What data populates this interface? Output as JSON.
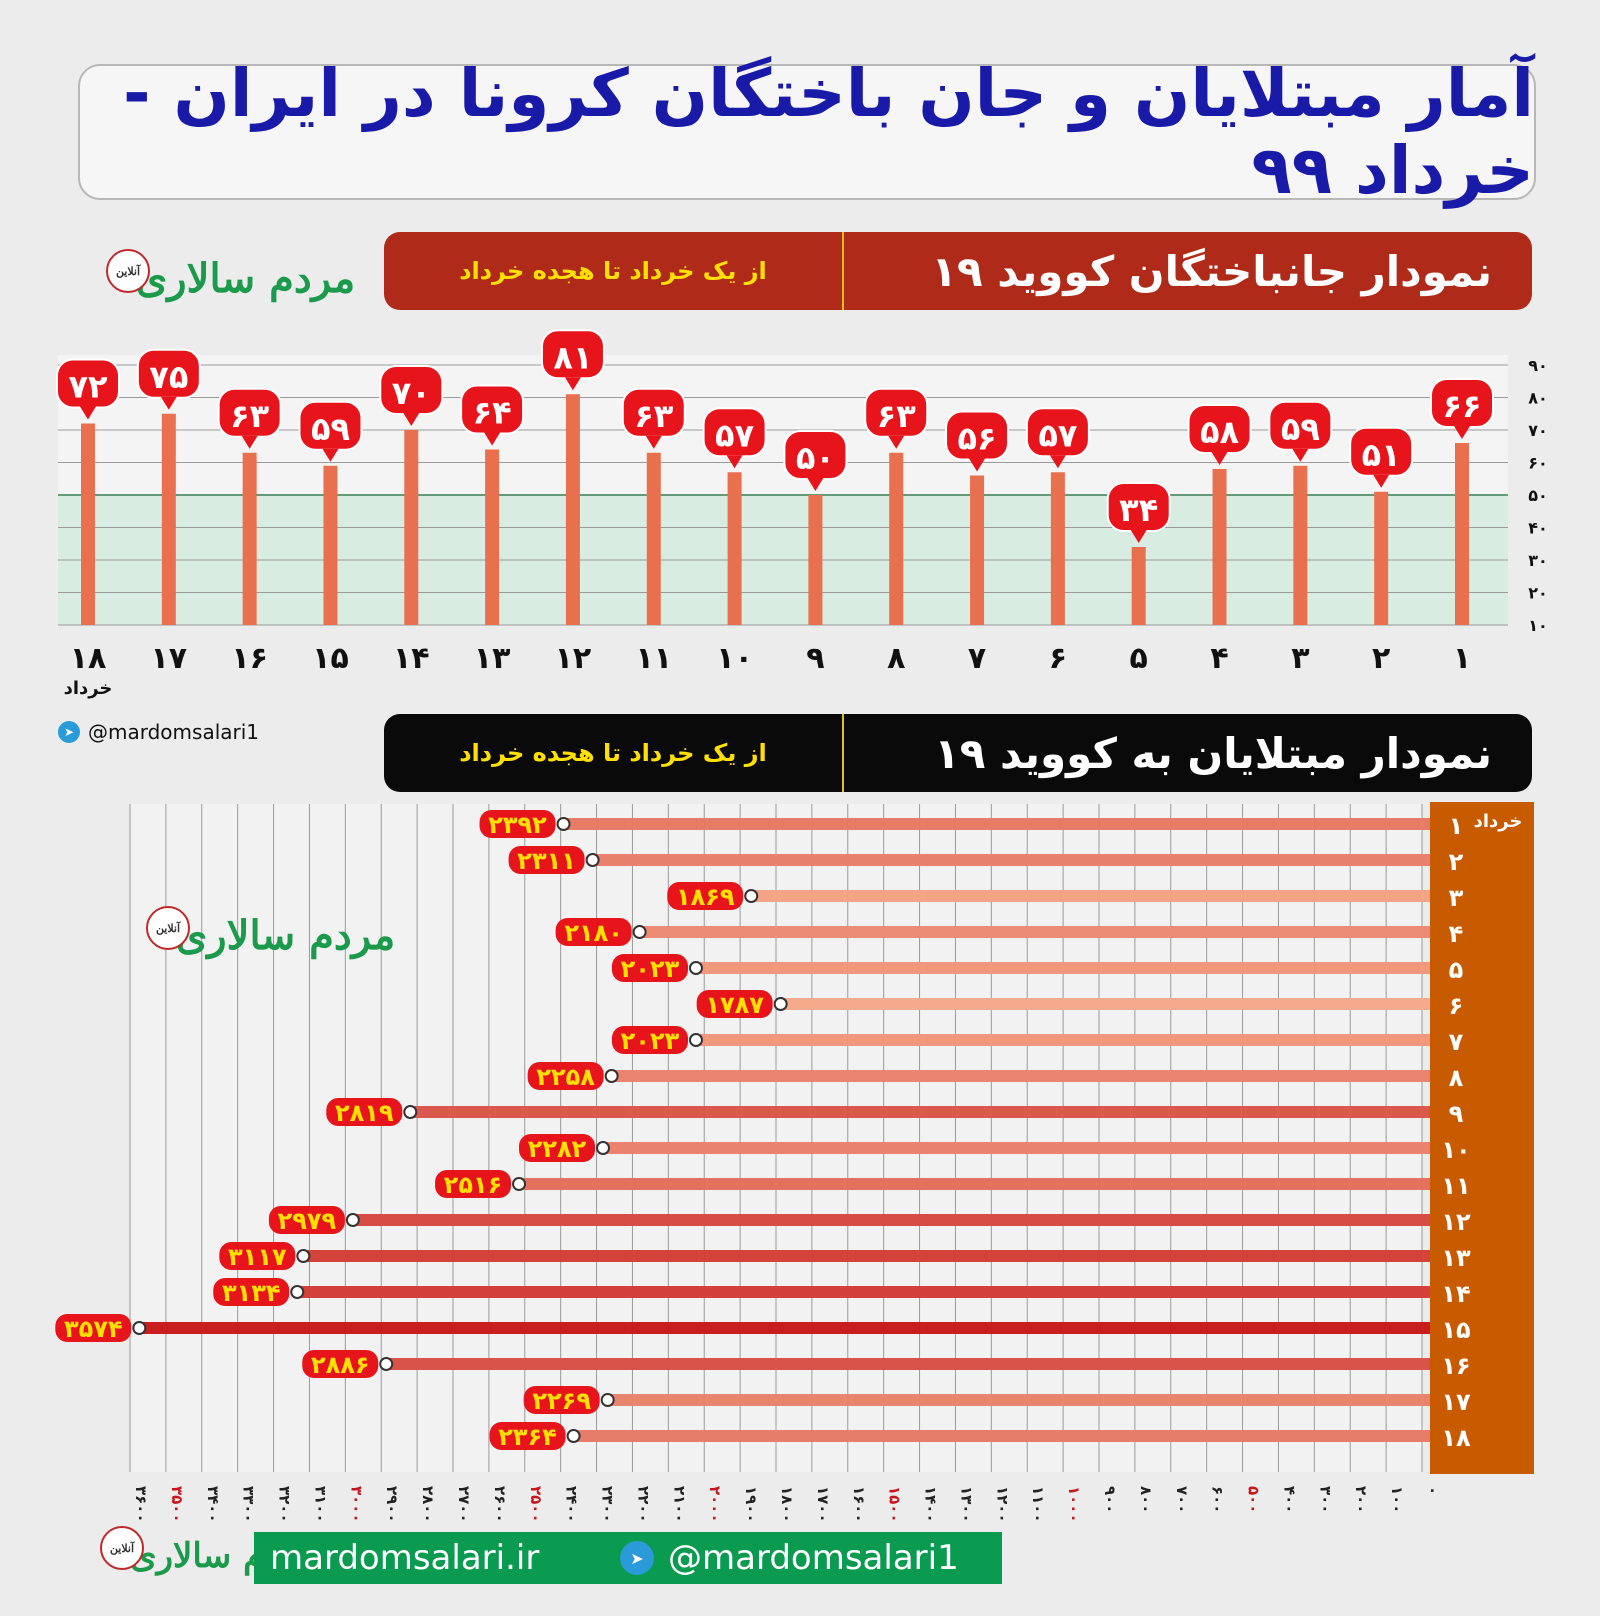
{
  "title": "آمار مبتلایان و جان باختگان کرونا در ایران - خرداد ۹۹",
  "deaths_section": {
    "heading": "نمودار جانباختگان کووید ۱۹",
    "subheading": "از یک خرداد تا هجده خرداد",
    "month_label": "خرداد"
  },
  "cases_section": {
    "heading": "نمودار مبتلایان به کووید ۱۹",
    "subheading": "از یک خرداد تا هجده خرداد",
    "month_label": "خرداد"
  },
  "logo": {
    "name": "مردم سالاری",
    "badge": "آنلاین"
  },
  "social": {
    "telegram": "@mardomsalari1",
    "site": "mardomsalari.ir"
  },
  "colors": {
    "title_blue": "#1a1aa8",
    "death_bar": "#e8704f",
    "label_red": "#e8141c",
    "case_header": "#c85a00",
    "footer_green": "#0a9a50"
  },
  "chart_data": [
    {
      "type": "bar",
      "days": [
        "۱",
        "۲",
        "۳",
        "۴",
        "۵",
        "۶",
        "۷",
        "۸",
        "۹",
        "۱۰",
        "۱۱",
        "۱۲",
        "۱۳",
        "۱۴",
        "۱۵",
        "۱۶",
        "۱۷",
        "۱۸"
      ],
      "values": [
        66,
        51,
        59,
        58,
        34,
        57,
        56,
        63,
        50,
        57,
        63,
        81,
        64,
        70,
        59,
        63,
        75,
        72
      ],
      "value_labels": [
        "۶۶",
        "۵۱",
        "۵۹",
        "۵۸",
        "۳۴",
        "۵۷",
        "۵۶",
        "۶۳",
        "۵۰",
        "۵۷",
        "۶۳",
        "۸۱",
        "۶۴",
        "۷۰",
        "۵۹",
        "۶۳",
        "۷۵",
        "۷۲"
      ],
      "y_ticks": [
        10,
        20,
        30,
        40,
        50,
        60,
        70,
        80,
        90
      ],
      "y_tick_labels": [
        "۱۰",
        "۲۰",
        "۳۰",
        "۴۰",
        "۵۰",
        "۶۰",
        "۷۰",
        "۸۰",
        "۹۰"
      ],
      "ylim": [
        10,
        90
      ],
      "highlight_band": [
        10,
        50
      ],
      "x_direction": "right-to-left"
    },
    {
      "type": "bar",
      "orientation": "horizontal",
      "days": [
        "۱",
        "۲",
        "۳",
        "۴",
        "۵",
        "۶",
        "۷",
        "۸",
        "۹",
        "۱۰",
        "۱۱",
        "۱۲",
        "۱۳",
        "۱۴",
        "۱۵",
        "۱۶",
        "۱۷",
        "۱۸"
      ],
      "values": [
        2392,
        2311,
        1869,
        2180,
        2023,
        1787,
        2023,
        2258,
        2819,
        2282,
        2516,
        2979,
        3117,
        3134,
        3574,
        2886,
        2269,
        2364
      ],
      "value_labels": [
        "۲۳۹۲",
        "۲۳۱۱",
        "۱۸۶۹",
        "۲۱۸۰",
        "۲۰۲۳",
        "۱۷۸۷",
        "۲۰۲۳",
        "۲۲۵۸",
        "۲۸۱۹",
        "۲۲۸۲",
        "۲۵۱۶",
        "۲۹۷۹",
        "۳۱۱۷",
        "۳۱۳۴",
        "۳۵۷۴",
        "۲۸۸۶",
        "۲۲۶۹",
        "۲۳۶۴"
      ],
      "x_ticks": [
        0,
        100,
        200,
        300,
        400,
        500,
        600,
        700,
        800,
        900,
        1000,
        1100,
        1200,
        1300,
        1400,
        1500,
        1600,
        1700,
        1800,
        1900,
        2000,
        2100,
        2200,
        2300,
        2400,
        2500,
        2600,
        2700,
        2800,
        2900,
        3000,
        3100,
        3200,
        3300,
        3400,
        3500,
        3600
      ],
      "x_tick_labels": [
        "۰",
        "۱۰۰",
        "۲۰۰",
        "۳۰۰",
        "۴۰۰",
        "۵۰۰",
        "۶۰۰",
        "۷۰۰",
        "۸۰۰",
        "۹۰۰",
        "۱۰۰۰",
        "۱۱۰۰",
        "۱۲۰۰",
        "۱۳۰۰",
        "۱۴۰۰",
        "۱۵۰۰",
        "۱۶۰۰",
        "۱۷۰۰",
        "۱۸۰۰",
        "۱۹۰۰",
        "۲۰۰۰",
        "۲۱۰۰",
        "۲۲۰۰",
        "۲۳۰۰",
        "۲۴۰۰",
        "۲۵۰۰",
        "۲۶۰۰",
        "۲۷۰۰",
        "۲۸۰۰",
        "۲۹۰۰",
        "۳۰۰۰",
        "۳۱۰۰",
        "۳۲۰۰",
        "۳۳۰۰",
        "۳۴۰۰",
        "۳۵۰۰",
        "۳۶۰۰"
      ],
      "xlim": [
        0,
        3600
      ],
      "x_direction": "right-to-left"
    }
  ]
}
